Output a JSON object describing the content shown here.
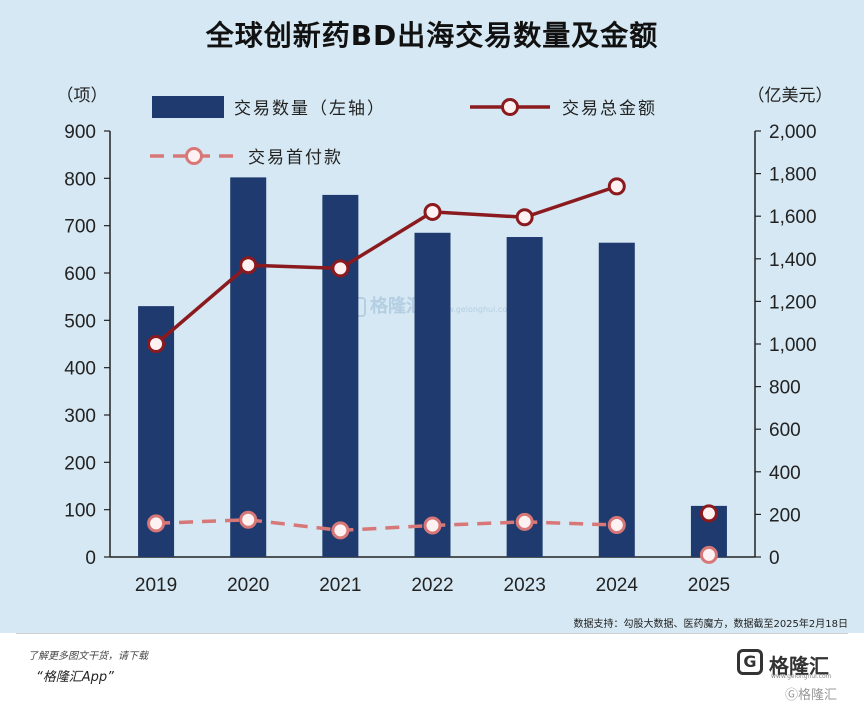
{
  "header": {
    "title": "全球创新药BD出海交易数量及金额"
  },
  "chart_data": {
    "type": "bar",
    "categories": [
      "2019",
      "2020",
      "2021",
      "2022",
      "2023",
      "2024",
      "2025"
    ],
    "bar_series": {
      "name": "交易数量（左轴）",
      "axis": "left",
      "values": [
        530,
        802,
        765,
        685,
        676,
        664,
        108
      ]
    },
    "line_series": [
      {
        "name": "交易总金额",
        "axis": "right",
        "values": [
          1000,
          1370,
          1355,
          1620,
          1595,
          1740,
          205
        ]
      },
      {
        "name": "交易首付款",
        "axis": "right",
        "values": [
          158,
          175,
          125,
          148,
          165,
          150,
          10
        ]
      }
    ],
    "left_axis": {
      "unit": "（项）",
      "min": 0,
      "max": 900,
      "ticks": [
        "0",
        "100",
        "200",
        "300",
        "400",
        "500",
        "600",
        "700",
        "800",
        "900"
      ]
    },
    "right_axis": {
      "unit": "（亿美元）",
      "min": 0,
      "max": 2000,
      "ticks": [
        "0",
        "200",
        "400",
        "600",
        "800",
        "1,000",
        "1,200",
        "1,400",
        "1,600",
        "1,800",
        "2,000"
      ]
    },
    "legend_position": "top",
    "colors": {
      "bars": "#1e3a6e",
      "total_line": "#8b1a1f",
      "downpayment_line": "#d77778",
      "marker_fill": "#fdf1f1",
      "background": "#d6e8f3"
    }
  },
  "footer": {
    "source": "数据支持：勾股大数据、医药魔方，数据截至2025年2月18日",
    "promo_line1": "了解更多图文干货，请下载",
    "promo_line2": "“格隆汇App”",
    "logo_text": "格隆汇",
    "logo_url": "www.gelonghui.com",
    "watermark_text": "格隆汇",
    "watermark_url": "www.gelonghui.com"
  }
}
